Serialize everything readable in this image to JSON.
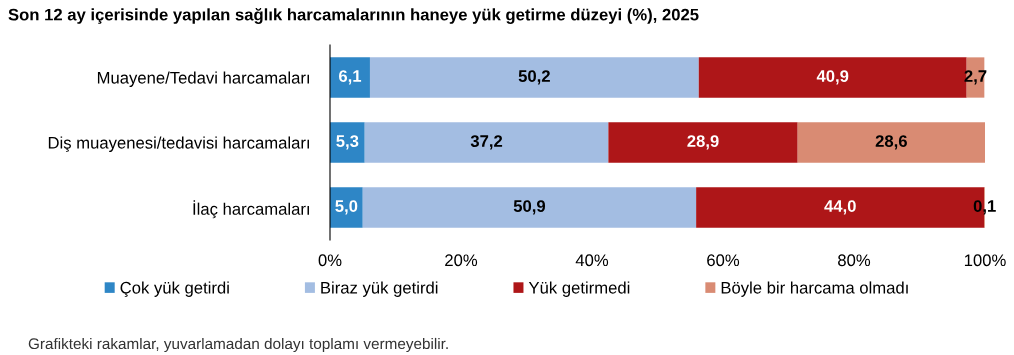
{
  "chart_data": {
    "type": "bar",
    "orientation": "horizontal",
    "stacked": true,
    "title": "Son 12 ay içerisinde yapılan sağlık harcamalarının haneye yük getirme düzeyi (%), 2025",
    "categories": [
      "Muayene/Tedavi harcamaları",
      "Diş muayenesi/tedavisi harcamaları",
      "İlaç harcamaları"
    ],
    "series": [
      {
        "name": "Çok yük getirdi",
        "color": "#2e86c6",
        "values": [
          6.1,
          5.3,
          5.0
        ],
        "value_labels": [
          "6,1",
          "5,3",
          "5,0"
        ]
      },
      {
        "name": "Biraz yük getirdi",
        "color": "#a3bde2",
        "values": [
          50.2,
          37.2,
          50.9
        ],
        "value_labels": [
          "50,2",
          "37,2",
          "50,9"
        ]
      },
      {
        "name": "Yük getirmedi",
        "color": "#ae1618",
        "values": [
          40.9,
          28.9,
          44.0
        ],
        "value_labels": [
          "40,9",
          "28,9",
          "44,0"
        ]
      },
      {
        "name": "Böyle bir harcama olmadı",
        "color": "#d98b73",
        "values": [
          2.7,
          28.6,
          0.1
        ],
        "value_labels": [
          "2,7",
          "28,6",
          "0,1"
        ]
      }
    ],
    "xlim": [
      0,
      100
    ],
    "xticks": [
      {
        "value": 0,
        "label": "0%"
      },
      {
        "value": 20,
        "label": "20%"
      },
      {
        "value": 40,
        "label": "40%"
      },
      {
        "value": 60,
        "label": "60%"
      },
      {
        "value": 80,
        "label": "80%"
      },
      {
        "value": 100,
        "label": "100%"
      }
    ],
    "legend": "bottom",
    "annotations": [
      "Grafikteki rakamlar, yuvarlamadan dolayı toplamı vermeyebilir."
    ]
  }
}
